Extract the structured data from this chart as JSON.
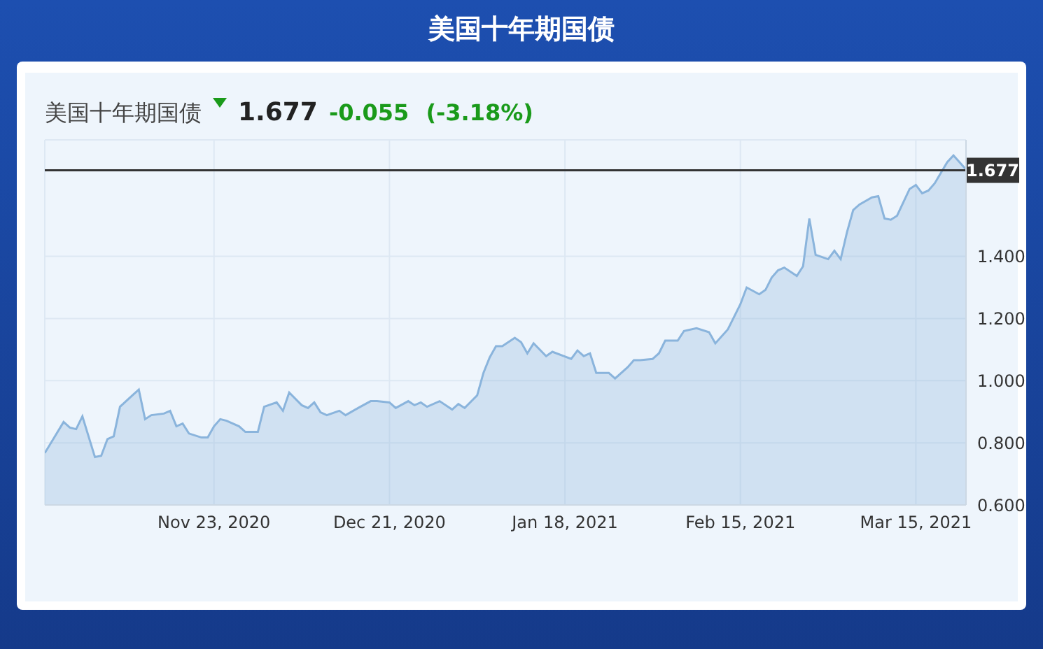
{
  "chart_data": {
    "type": "area",
    "title": "美国十年期国债",
    "subtitle": "美国十年期国债",
    "annotations": [
      "1.677",
      "-0.055",
      "(-3.18%)"
    ],
    "x": [
      "2020-10-27",
      "2020-10-30",
      "2020-10-31",
      "2020-11-01",
      "2020-11-02",
      "2020-11-04",
      "2020-11-05",
      "2020-11-06",
      "2020-11-07",
      "2020-11-08",
      "2020-11-10",
      "2020-11-11",
      "2020-11-12",
      "2020-11-13",
      "2020-11-15",
      "2020-11-16",
      "2020-11-17",
      "2020-11-18",
      "2020-11-19",
      "2020-11-21",
      "2020-11-22",
      "2020-11-23",
      "2020-11-24",
      "2020-11-25",
      "2020-11-27",
      "2020-11-28",
      "2020-11-29",
      "2020-11-30",
      "2020-12-01",
      "2020-12-03",
      "2020-12-04",
      "2020-12-05",
      "2020-12-07",
      "2020-12-08",
      "2020-12-09",
      "2020-12-10",
      "2020-12-11",
      "2020-12-13",
      "2020-12-14",
      "2020-12-16",
      "2020-12-18",
      "2020-12-19",
      "2020-12-21",
      "2020-12-22",
      "2020-12-24",
      "2020-12-25",
      "2020-12-26",
      "2020-12-27",
      "2020-12-29",
      "2020-12-31",
      "2021-01-01",
      "2021-01-02",
      "2021-01-04",
      "2021-01-05",
      "2021-01-06",
      "2021-01-07",
      "2021-01-08",
      "2021-01-10",
      "2021-01-11",
      "2021-01-12",
      "2021-01-13",
      "2021-01-15",
      "2021-01-16",
      "2021-01-19",
      "2021-01-20",
      "2021-01-21",
      "2021-01-22",
      "2021-01-23",
      "2021-01-25",
      "2021-01-26",
      "2021-01-28",
      "2021-01-29",
      "2021-01-30",
      "2021-02-01",
      "2021-02-02",
      "2021-02-03",
      "2021-02-05",
      "2021-02-06",
      "2021-02-08",
      "2021-02-10",
      "2021-02-11",
      "2021-02-13",
      "2021-02-15",
      "2021-02-16",
      "2021-02-18",
      "2021-02-19",
      "2021-02-20",
      "2021-02-21",
      "2021-02-22",
      "2021-02-24",
      "2021-02-25",
      "2021-02-26",
      "2021-02-27",
      "2021-03-01",
      "2021-03-02",
      "2021-03-03",
      "2021-03-04",
      "2021-03-05",
      "2021-03-06",
      "2021-03-08",
      "2021-03-09",
      "2021-03-10",
      "2021-03-11",
      "2021-03-12",
      "2021-03-14",
      "2021-03-15",
      "2021-03-16",
      "2021-03-17",
      "2021-03-18",
      "2021-03-20",
      "2021-03-21",
      "2021-03-23"
    ],
    "series": [
      {
        "color": "#8ab4dc",
        "values": [
          0.767,
          0.867,
          0.849,
          0.844,
          0.885,
          0.754,
          0.758,
          0.812,
          0.821,
          0.916,
          0.953,
          0.971,
          0.876,
          0.889,
          0.894,
          0.903,
          0.853,
          0.862,
          0.83,
          0.817,
          0.817,
          0.853,
          0.876,
          0.871,
          0.853,
          0.835,
          0.835,
          0.835,
          0.916,
          0.93,
          0.903,
          0.962,
          0.921,
          0.912,
          0.93,
          0.898,
          0.889,
          0.903,
          0.889,
          0.912,
          0.934,
          0.934,
          0.93,
          0.912,
          0.934,
          0.921,
          0.93,
          0.916,
          0.934,
          0.907,
          0.925,
          0.912,
          0.953,
          1.025,
          1.075,
          1.111,
          1.111,
          1.138,
          1.124,
          1.088,
          1.12,
          1.079,
          1.093,
          1.07,
          1.097,
          1.079,
          1.088,
          1.025,
          1.025,
          1.007,
          1.043,
          1.066,
          1.066,
          1.07,
          1.088,
          1.129,
          1.129,
          1.16,
          1.169,
          1.156,
          1.12,
          1.165,
          1.246,
          1.3,
          1.278,
          1.292,
          1.332,
          1.355,
          1.364,
          1.337,
          1.368,
          1.522,
          1.405,
          1.391,
          1.418,
          1.391,
          1.477,
          1.549,
          1.567,
          1.59,
          1.594,
          1.522,
          1.518,
          1.531,
          1.617,
          1.63,
          1.603,
          1.612,
          1.635,
          1.703,
          1.725,
          1.68
        ]
      }
    ],
    "xlim": [
      "2020-10-27",
      "2021-03-23"
    ],
    "xticks": [
      {
        "value": "2020-11-23",
        "label": "Nov 23, 2020"
      },
      {
        "value": "2020-12-21",
        "label": "Dec 21, 2020"
      },
      {
        "value": "2021-01-18",
        "label": "Jan 18, 2021"
      },
      {
        "value": "2021-02-15",
        "label": "Feb 15, 2021"
      },
      {
        "value": "2021-03-15",
        "label": "Mar 15, 2021"
      }
    ],
    "ylim": [
      0.6,
      1.775
    ],
    "yticks": [
      {
        "value": 0.6,
        "label": "0.600"
      },
      {
        "value": 0.8,
        "label": "0.800"
      },
      {
        "value": 1.0,
        "label": "1.000"
      },
      {
        "value": 1.2,
        "label": "1.200"
      },
      {
        "value": 1.4,
        "label": "1.400"
      }
    ],
    "ref_lines": [
      {
        "axis": "y",
        "value": 1.677,
        "label": "1.677",
        "color": "#333333"
      }
    ],
    "grid": true,
    "marker": "none",
    "line_style": "solid"
  }
}
